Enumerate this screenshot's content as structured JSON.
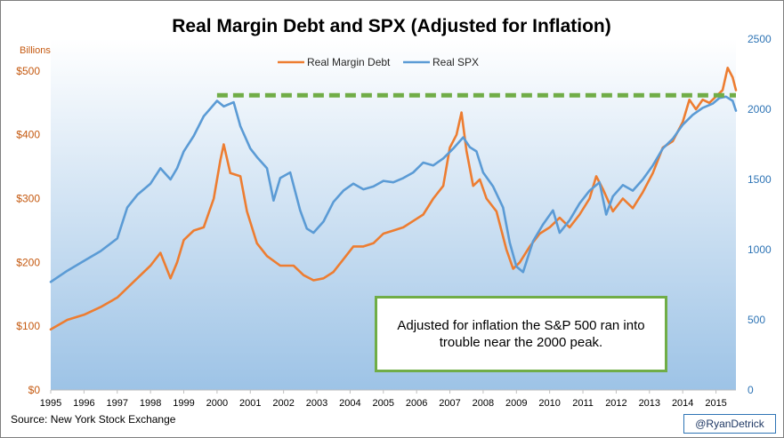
{
  "chart_data": {
    "type": "line",
    "title": "Real Margin Debt and SPX (Adjusted for Inflation)",
    "y_left_unit": "Billions",
    "y_left_ticks": [
      "$0",
      "$100",
      "$200",
      "$300",
      "$400",
      "$500"
    ],
    "y_left_range": [
      0,
      550
    ],
    "y_right_ticks": [
      "0",
      "500",
      "1000",
      "1500",
      "2000",
      "2500"
    ],
    "y_right_range": [
      0,
      2500
    ],
    "x_range": [
      1995,
      2015.6
    ],
    "x_ticks": [
      "1995",
      "1996",
      "1997",
      "1998",
      "1999",
      "2000",
      "2001",
      "2002",
      "2003",
      "2004",
      "2005",
      "2006",
      "2007",
      "2008",
      "2009",
      "2010",
      "2011",
      "2012",
      "2013",
      "2014",
      "2015"
    ],
    "legend_position": "top-center",
    "grid": false,
    "series": [
      {
        "name": "Real Margin Debt",
        "axis": "left",
        "color": "#ed7d31",
        "x": [
          1995.0,
          1995.5,
          1996.0,
          1996.5,
          1997.0,
          1997.5,
          1998.0,
          1998.3,
          1998.6,
          1998.8,
          1999.0,
          1999.3,
          1999.6,
          1999.9,
          2000.1,
          2000.2,
          2000.4,
          2000.7,
          2000.9,
          2001.2,
          2001.5,
          2001.9,
          2002.3,
          2002.6,
          2002.9,
          2003.2,
          2003.5,
          2003.8,
          2004.1,
          2004.4,
          2004.7,
          2005.0,
          2005.3,
          2005.6,
          2005.9,
          2006.2,
          2006.5,
          2006.8,
          2007.0,
          2007.2,
          2007.35,
          2007.5,
          2007.7,
          2007.9,
          2008.1,
          2008.4,
          2008.7,
          2008.9,
          2009.1,
          2009.4,
          2009.7,
          2010.0,
          2010.3,
          2010.6,
          2010.9,
          2011.2,
          2011.4,
          2011.6,
          2011.9,
          2012.2,
          2012.5,
          2012.8,
          2013.1,
          2013.4,
          2013.7,
          2014.0,
          2014.2,
          2014.4,
          2014.6,
          2014.8,
          2015.0,
          2015.2,
          2015.35,
          2015.5,
          2015.6
        ],
        "values": [
          95,
          110,
          118,
          130,
          145,
          170,
          195,
          215,
          175,
          200,
          235,
          250,
          255,
          300,
          360,
          385,
          340,
          335,
          280,
          230,
          210,
          195,
          195,
          180,
          172,
          175,
          185,
          205,
          225,
          225,
          230,
          245,
          250,
          255,
          265,
          275,
          300,
          320,
          380,
          400,
          435,
          375,
          320,
          330,
          300,
          280,
          220,
          190,
          200,
          225,
          245,
          255,
          270,
          255,
          275,
          300,
          335,
          315,
          280,
          300,
          285,
          310,
          340,
          380,
          390,
          420,
          455,
          440,
          455,
          450,
          460,
          470,
          505,
          490,
          470
        ]
      },
      {
        "name": "Real SPX",
        "axis": "right",
        "color": "#5b9bd5",
        "x": [
          1995.0,
          1995.5,
          1996.0,
          1996.5,
          1997.0,
          1997.3,
          1997.6,
          1998.0,
          1998.3,
          1998.6,
          1998.8,
          1999.0,
          1999.3,
          1999.6,
          2000.0,
          2000.2,
          2000.5,
          2000.7,
          2001.0,
          2001.2,
          2001.5,
          2001.7,
          2001.9,
          2002.2,
          2002.5,
          2002.7,
          2002.9,
          2003.2,
          2003.5,
          2003.8,
          2004.1,
          2004.4,
          2004.7,
          2005.0,
          2005.3,
          2005.6,
          2005.9,
          2006.2,
          2006.5,
          2006.8,
          2007.1,
          2007.4,
          2007.6,
          2007.8,
          2008.0,
          2008.3,
          2008.6,
          2008.8,
          2009.0,
          2009.2,
          2009.5,
          2009.8,
          2010.1,
          2010.3,
          2010.6,
          2010.9,
          2011.2,
          2011.5,
          2011.7,
          2011.9,
          2012.2,
          2012.5,
          2012.8,
          2013.1,
          2013.4,
          2013.7,
          2014.0,
          2014.3,
          2014.6,
          2014.9,
          2015.1,
          2015.3,
          2015.5,
          2015.6
        ],
        "values": [
          770,
          850,
          920,
          990,
          1080,
          1300,
          1390,
          1470,
          1580,
          1500,
          1580,
          1700,
          1810,
          1950,
          2060,
          2020,
          2050,
          1880,
          1720,
          1660,
          1580,
          1350,
          1510,
          1550,
          1280,
          1150,
          1120,
          1200,
          1340,
          1420,
          1470,
          1430,
          1450,
          1490,
          1480,
          1510,
          1550,
          1620,
          1600,
          1650,
          1720,
          1800,
          1730,
          1700,
          1550,
          1450,
          1300,
          1050,
          880,
          840,
          1060,
          1180,
          1280,
          1120,
          1210,
          1330,
          1420,
          1480,
          1250,
          1380,
          1460,
          1420,
          1500,
          1600,
          1720,
          1790,
          1890,
          1960,
          2010,
          2040,
          2080,
          2090,
          2060,
          1990
        ]
      }
    ],
    "reference_line": {
      "label": "",
      "y_right": 2100,
      "x_start": 2000.0,
      "x_end": 2015.6,
      "color": "#70ad47",
      "style": "dashed"
    },
    "annotation": "Adjusted for inflation the S&P 500 ran into trouble near the 2000 peak.",
    "source": "Source:  New York Stock Exchange"
  },
  "credit": "@RyanDetrick",
  "colors": {
    "plot_bg_top": "#ffffff",
    "plot_bg_bottom": "#9dc3e6",
    "margin_debt": "#ed7d31",
    "spx": "#5b9bd5",
    "reference": "#70ad47"
  }
}
